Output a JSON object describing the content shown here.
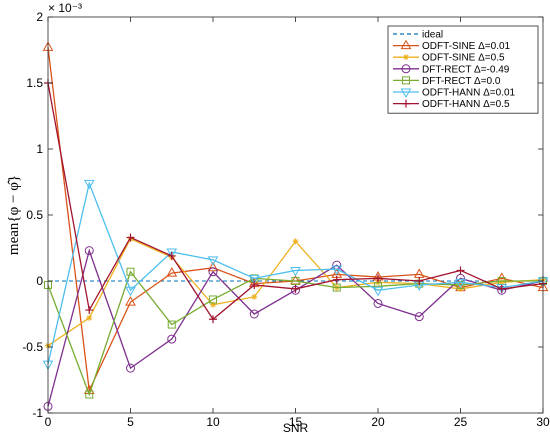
{
  "chart_data": {
    "type": "line",
    "xlabel": "SNR",
    "ylabel": "mean{φ − φ̂}",
    "y_exponent_label": "× 10⁻³",
    "xlim": [
      0,
      30
    ],
    "ylim": [
      -1,
      2
    ],
    "x_ticks": [
      0,
      5,
      10,
      15,
      20,
      25,
      30
    ],
    "y_ticks": [
      -1,
      -0.5,
      0,
      0.5,
      1,
      1.5,
      2
    ],
    "x_tick_labels": [
      "0",
      "5",
      "10",
      "15",
      "20",
      "25",
      "30"
    ],
    "y_tick_labels": [
      "-1",
      "-0.5",
      "0",
      "0.5",
      "1",
      "1.5",
      "2"
    ],
    "y_scale_note": "values shown in units of 1e-3",
    "grid": false,
    "legend_position": "top-right",
    "x": [
      0,
      2.5,
      5,
      7.5,
      10,
      12.5,
      15,
      17.5,
      20,
      22.5,
      25,
      27.5,
      30
    ],
    "series": [
      {
        "name": "ideal",
        "color": "#0072BD",
        "marker": "none",
        "dashed": true,
        "values": [
          0,
          0,
          0,
          0,
          0,
          0,
          0,
          0,
          0,
          0,
          0,
          0,
          0
        ]
      },
      {
        "name": "ODFT-SINE Δ=0.01",
        "color": "#D95319",
        "marker": "triangle-up",
        "values": [
          1.77,
          -0.83,
          -0.16,
          0.06,
          0.1,
          -0.02,
          0.0,
          0.05,
          0.03,
          0.05,
          -0.05,
          0.02,
          -0.05
        ]
      },
      {
        "name": "ODFT-SINE Δ=0.5",
        "color": "#EDB120",
        "marker": "star",
        "values": [
          -0.49,
          -0.28,
          0.32,
          0.18,
          -0.18,
          -0.12,
          0.3,
          -0.05,
          -0.01,
          -0.02,
          -0.06,
          -0.01,
          0.01
        ]
      },
      {
        "name": "DFT-RECT Δ=-0.49",
        "color": "#7E2F8E",
        "marker": "circle",
        "values": [
          -0.95,
          0.23,
          -0.66,
          -0.44,
          0.07,
          -0.25,
          -0.07,
          0.12,
          -0.17,
          -0.27,
          0.02,
          -0.07,
          0.0
        ]
      },
      {
        "name": "DFT-RECT Δ=0.0",
        "color": "#77AC30",
        "marker": "square",
        "values": [
          -0.03,
          -0.86,
          0.07,
          -0.33,
          -0.14,
          0.02,
          0.0,
          -0.05,
          -0.04,
          -0.02,
          -0.03,
          0.0,
          0.0
        ]
      },
      {
        "name": "ODFT-HANN Δ=0.01",
        "color": "#4DBEEE",
        "marker": "triangle-down",
        "values": [
          -0.63,
          0.74,
          -0.07,
          0.22,
          0.16,
          0.02,
          0.08,
          0.09,
          -0.07,
          -0.03,
          -0.01,
          -0.05,
          0.0
        ]
      },
      {
        "name": "ODFT-HANN Δ=0.5",
        "color": "#A2142F",
        "marker": "plus",
        "values": [
          1.5,
          -0.22,
          0.33,
          0.19,
          -0.29,
          -0.03,
          -0.06,
          0.01,
          0.02,
          0.0,
          0.08,
          -0.06,
          -0.02
        ]
      }
    ]
  }
}
